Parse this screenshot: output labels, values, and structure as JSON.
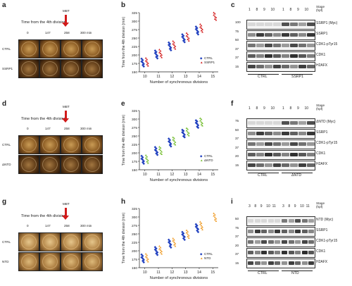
{
  "panels": {
    "a": {
      "letter": "a",
      "time_title": "Time from the 4th division",
      "mbt": "MBT",
      "times": [
        "0",
        "147",
        "258",
        "300 min"
      ],
      "rows": [
        "CTRL",
        "SSRP1"
      ]
    },
    "b": {
      "letter": "b",
      "ylabel": "Time from the 4th division (min)",
      "xlabel": "Number of synchronous divisions",
      "legend": [
        "CTRL",
        "SSRP1"
      ]
    },
    "c": {
      "letter": "c",
      "stage_label": "Stage\n(hpf)",
      "stages_left": [
        "1",
        "8",
        "9",
        "10"
      ],
      "stages_right": [
        "1",
        "8",
        "9",
        "10"
      ],
      "bands": [
        "SSRP1 (Myc)",
        "SSRP1",
        "CDK1-pTyr15",
        "CDK1",
        "H2AFX"
      ],
      "markers": [
        "100",
        "75",
        "50",
        "37",
        "37",
        "15"
      ],
      "groups": [
        "CTRL",
        "SSRP1"
      ]
    },
    "d": {
      "letter": "d",
      "time_title": "Time from the 4th division",
      "mbt": "MBT",
      "times": [
        "0",
        "147",
        "258",
        "300 min"
      ],
      "rows": [
        "CTRL",
        "ΔNTD"
      ]
    },
    "e": {
      "letter": "e",
      "ylabel": "Time from the 4th division (min)",
      "xlabel": "Number of synchronous divisions",
      "legend": [
        "CTRL",
        "ΔNTD"
      ]
    },
    "f": {
      "letter": "f",
      "stage_label": "Stage\n(hpf)",
      "stages_left": [
        "1",
        "8",
        "9",
        "10"
      ],
      "stages_right": [
        "1",
        "8",
        "9",
        "10"
      ],
      "bands": [
        "ΔNTD (Myc)",
        "SSRP1",
        "CDK1-pTyr15",
        "CDK1",
        "H2AFX"
      ],
      "markers": [
        "75",
        "50",
        "37",
        "37",
        "20",
        "15"
      ],
      "groups": [
        "CTRL",
        "ΔNTD"
      ]
    },
    "g": {
      "letter": "g",
      "time_title": "Time from the 4th division",
      "mbt": "MBT",
      "times": [
        "0",
        "147",
        "258",
        "300 min"
      ],
      "rows": [
        "CTRL",
        "NTD"
      ]
    },
    "h": {
      "letter": "h",
      "ylabel": "Time from the 4th division (min)",
      "xlabel": "Number of synchronous divisions",
      "legend": [
        "CTRL",
        "NTD"
      ]
    },
    "i": {
      "letter": "i",
      "stage_label": "Stage\n(hpf)",
      "stages_left": [
        "3",
        "8",
        "9",
        "10",
        "11"
      ],
      "stages_right": [
        "3",
        "8",
        "9",
        "10",
        "11"
      ],
      "bands": [
        "NTD (Myc)",
        "SSRP1",
        "CDK1-pTyr15",
        "CDK1",
        "H2AFX"
      ],
      "markers": [
        "50",
        "75",
        "37",
        "20",
        "37",
        "15"
      ],
      "groups": [
        "CTRL",
        "NTD"
      ]
    }
  },
  "colors": {
    "ctrl": "#1f3fbf",
    "ssrp1": "#d42020",
    "dntd": "#79c036",
    "ntd": "#f0a030"
  },
  "chart_data": [
    {
      "type": "scatter",
      "panel": "b",
      "x_ticks": [
        "10",
        "11",
        "12",
        "13",
        "14",
        "15"
      ],
      "y_ticks": [
        "150",
        "175",
        "200",
        "225",
        "250",
        "275",
        "300",
        "325"
      ],
      "ylim": [
        150,
        325
      ],
      "series": [
        {
          "name": "CTRL",
          "x": [
            10,
            11,
            12,
            13,
            14
          ],
          "y": [
            178,
            202,
            226,
            250,
            273
          ]
        },
        {
          "name": "SSRP1",
          "x": [
            10,
            11,
            12,
            13,
            14,
            15
          ],
          "y": [
            180,
            205,
            230,
            254,
            280,
            315
          ]
        }
      ]
    },
    {
      "type": "scatter",
      "panel": "e",
      "x_ticks": [
        "10",
        "11",
        "12",
        "13",
        "14",
        "15"
      ],
      "y_ticks": [
        "150",
        "175",
        "200",
        "225",
        "250",
        "275",
        "300",
        "325"
      ],
      "ylim": [
        150,
        325
      ],
      "series": [
        {
          "name": "CTRL",
          "x": [
            10,
            11,
            12,
            13,
            14
          ],
          "y": [
            180,
            206,
            231,
            258,
            286
          ]
        },
        {
          "name": "ΔNTD",
          "x": [
            10,
            11,
            12,
            13,
            14
          ],
          "y": [
            182,
            208,
            236,
            263,
            292
          ]
        }
      ]
    },
    {
      "type": "scatter",
      "panel": "h",
      "x_ticks": [
        "10",
        "11",
        "12",
        "13",
        "14",
        "15"
      ],
      "y_ticks": [
        "150",
        "175",
        "200",
        "225",
        "250",
        "275",
        "300",
        "325"
      ],
      "ylim": [
        150,
        325
      ],
      "series": [
        {
          "name": "CTRL",
          "x": [
            10,
            11,
            12,
            13,
            14
          ],
          "y": [
            178,
            200,
            222,
            245,
            268
          ]
        },
        {
          "name": "NTD",
          "x": [
            10,
            11,
            12,
            13,
            14,
            15
          ],
          "y": [
            180,
            203,
            226,
            250,
            275,
            300
          ]
        }
      ]
    }
  ]
}
